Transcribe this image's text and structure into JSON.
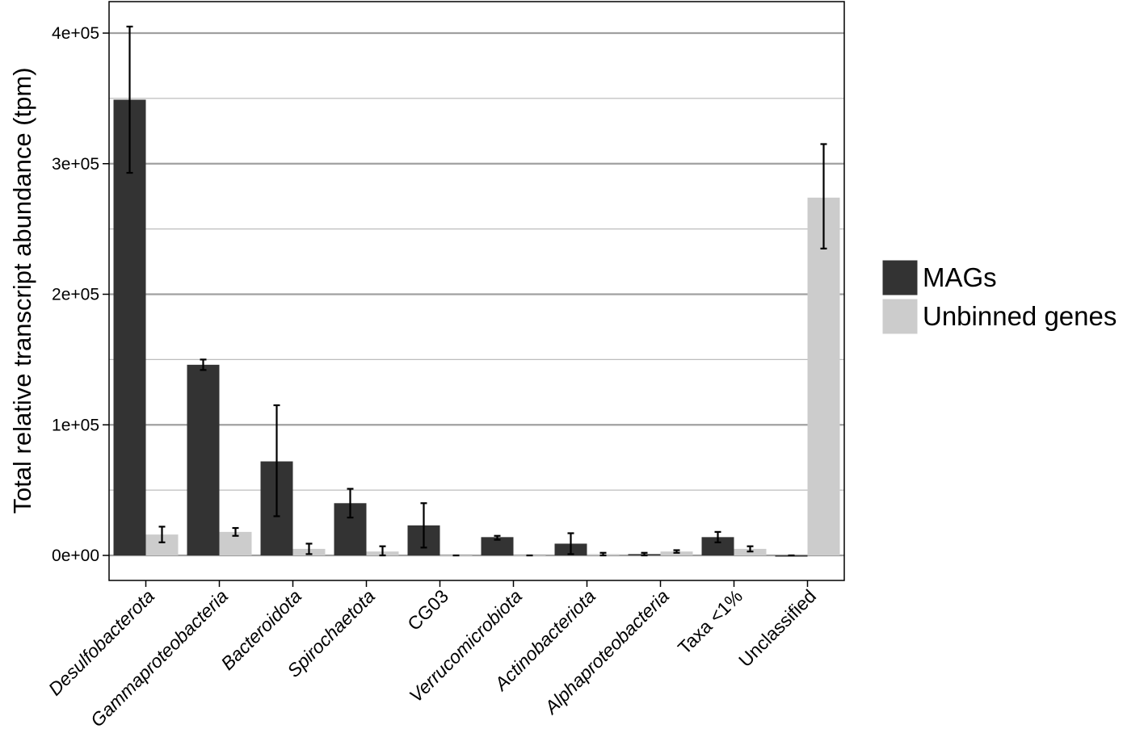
{
  "chart_data": {
    "type": "bar",
    "ylabel": "Total relative transcript abundance (tpm)",
    "xlabel": "",
    "ylim": [
      -20000,
      425000
    ],
    "yticks": [
      0,
      100000,
      200000,
      300000,
      400000
    ],
    "ytick_labels": [
      "0e+00",
      "1e+05",
      "2e+05",
      "3e+05",
      "4e+05"
    ],
    "categories": [
      "Desulfobacterota",
      "Gammaproteobacteria",
      "Bacteroidota",
      "Spirochaetota",
      "CG03",
      "Verrucomicrobiota",
      "Actinobacteriota",
      "Alphaproteobacteria",
      "Taxa <1%",
      "Unclassified"
    ],
    "italic_categories": [
      true,
      true,
      true,
      true,
      false,
      true,
      true,
      true,
      false,
      false
    ],
    "series": [
      {
        "name": "MAGs",
        "color": "#333333",
        "values": [
          349000,
          146000,
          72000,
          40000,
          23000,
          14000,
          9000,
          1000,
          14000,
          0
        ],
        "err_low": [
          293000,
          142000,
          30000,
          29000,
          6000,
          12000,
          1000,
          0,
          10000,
          0
        ],
        "err_high": [
          405000,
          150000,
          115000,
          51000,
          40000,
          15000,
          17000,
          2000,
          18000,
          0
        ]
      },
      {
        "name": "Unbinned genes",
        "color": "#cccccc",
        "values": [
          16000,
          18000,
          5000,
          3000,
          0,
          0,
          1000,
          3000,
          5000,
          274000
        ],
        "err_low": [
          10000,
          15000,
          1000,
          0,
          0,
          0,
          0,
          2000,
          3000,
          235000
        ],
        "err_high": [
          22000,
          21000,
          9000,
          7000,
          0,
          0,
          2000,
          4000,
          7000,
          315000
        ]
      }
    ],
    "grid": true,
    "legend_position": "right"
  }
}
